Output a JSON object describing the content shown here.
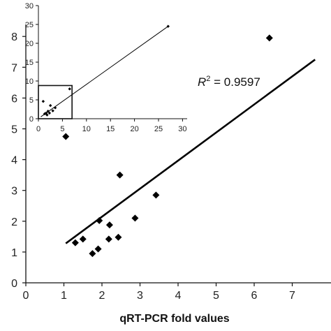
{
  "chart_data": [
    {
      "type": "scatter",
      "xlabel": "qRT-PCR fold values",
      "ylabel": "",
      "xlim": [
        0,
        7.6
      ],
      "ylim": [
        0,
        8.5
      ],
      "x_ticks": [
        "0",
        "1",
        "2",
        "3",
        "4",
        "5",
        "6",
        "7"
      ],
      "y_ticks": [
        "0",
        "1",
        "2",
        "3",
        "4",
        "5",
        "6",
        "7",
        "8"
      ],
      "points": [
        {
          "x": 1.05,
          "y": 4.75
        },
        {
          "x": 1.3,
          "y": 1.3
        },
        {
          "x": 1.5,
          "y": 1.42
        },
        {
          "x": 1.75,
          "y": 0.95
        },
        {
          "x": 1.9,
          "y": 1.1
        },
        {
          "x": 1.93,
          "y": 2.02
        },
        {
          "x": 2.18,
          "y": 1.42
        },
        {
          "x": 2.2,
          "y": 1.88
        },
        {
          "x": 2.43,
          "y": 1.48
        },
        {
          "x": 2.47,
          "y": 3.5
        },
        {
          "x": 2.87,
          "y": 2.1
        },
        {
          "x": 3.42,
          "y": 2.85
        },
        {
          "x": 6.4,
          "y": 7.95
        }
      ],
      "trendline": {
        "x1": 1.05,
        "y1": 1.28,
        "x2": 7.6,
        "y2": 7.25
      },
      "annotation": {
        "r_symbol": "R",
        "superscript": "2",
        "value_text": " = 0.9597"
      },
      "grid": false
    },
    {
      "type": "scatter",
      "role": "inset",
      "xlim": [
        0,
        30
      ],
      "ylim": [
        0,
        30
      ],
      "x_ticks": [
        "0",
        "5",
        "10",
        "15",
        "20",
        "25",
        "30"
      ],
      "y_ticks": [
        "0",
        "5",
        "10",
        "15",
        "20",
        "25",
        "30"
      ],
      "points": [
        {
          "x": 1.0,
          "y": 4.6
        },
        {
          "x": 1.3,
          "y": 1.3
        },
        {
          "x": 1.6,
          "y": 1.5
        },
        {
          "x": 1.8,
          "y": 1.0
        },
        {
          "x": 2.0,
          "y": 2.0
        },
        {
          "x": 2.3,
          "y": 1.5
        },
        {
          "x": 2.5,
          "y": 3.5
        },
        {
          "x": 3.0,
          "y": 2.1
        },
        {
          "x": 3.5,
          "y": 2.9
        },
        {
          "x": 6.5,
          "y": 7.9
        },
        {
          "x": 27.0,
          "y": 24.5
        }
      ],
      "trendline": {
        "x1": 0.5,
        "y1": 0.5,
        "x2": 27.0,
        "y2": 24.5
      },
      "zoom_box": {
        "x0": 0,
        "y0": 0,
        "x1": 7,
        "y1": 8.8
      },
      "grid": false
    }
  ]
}
